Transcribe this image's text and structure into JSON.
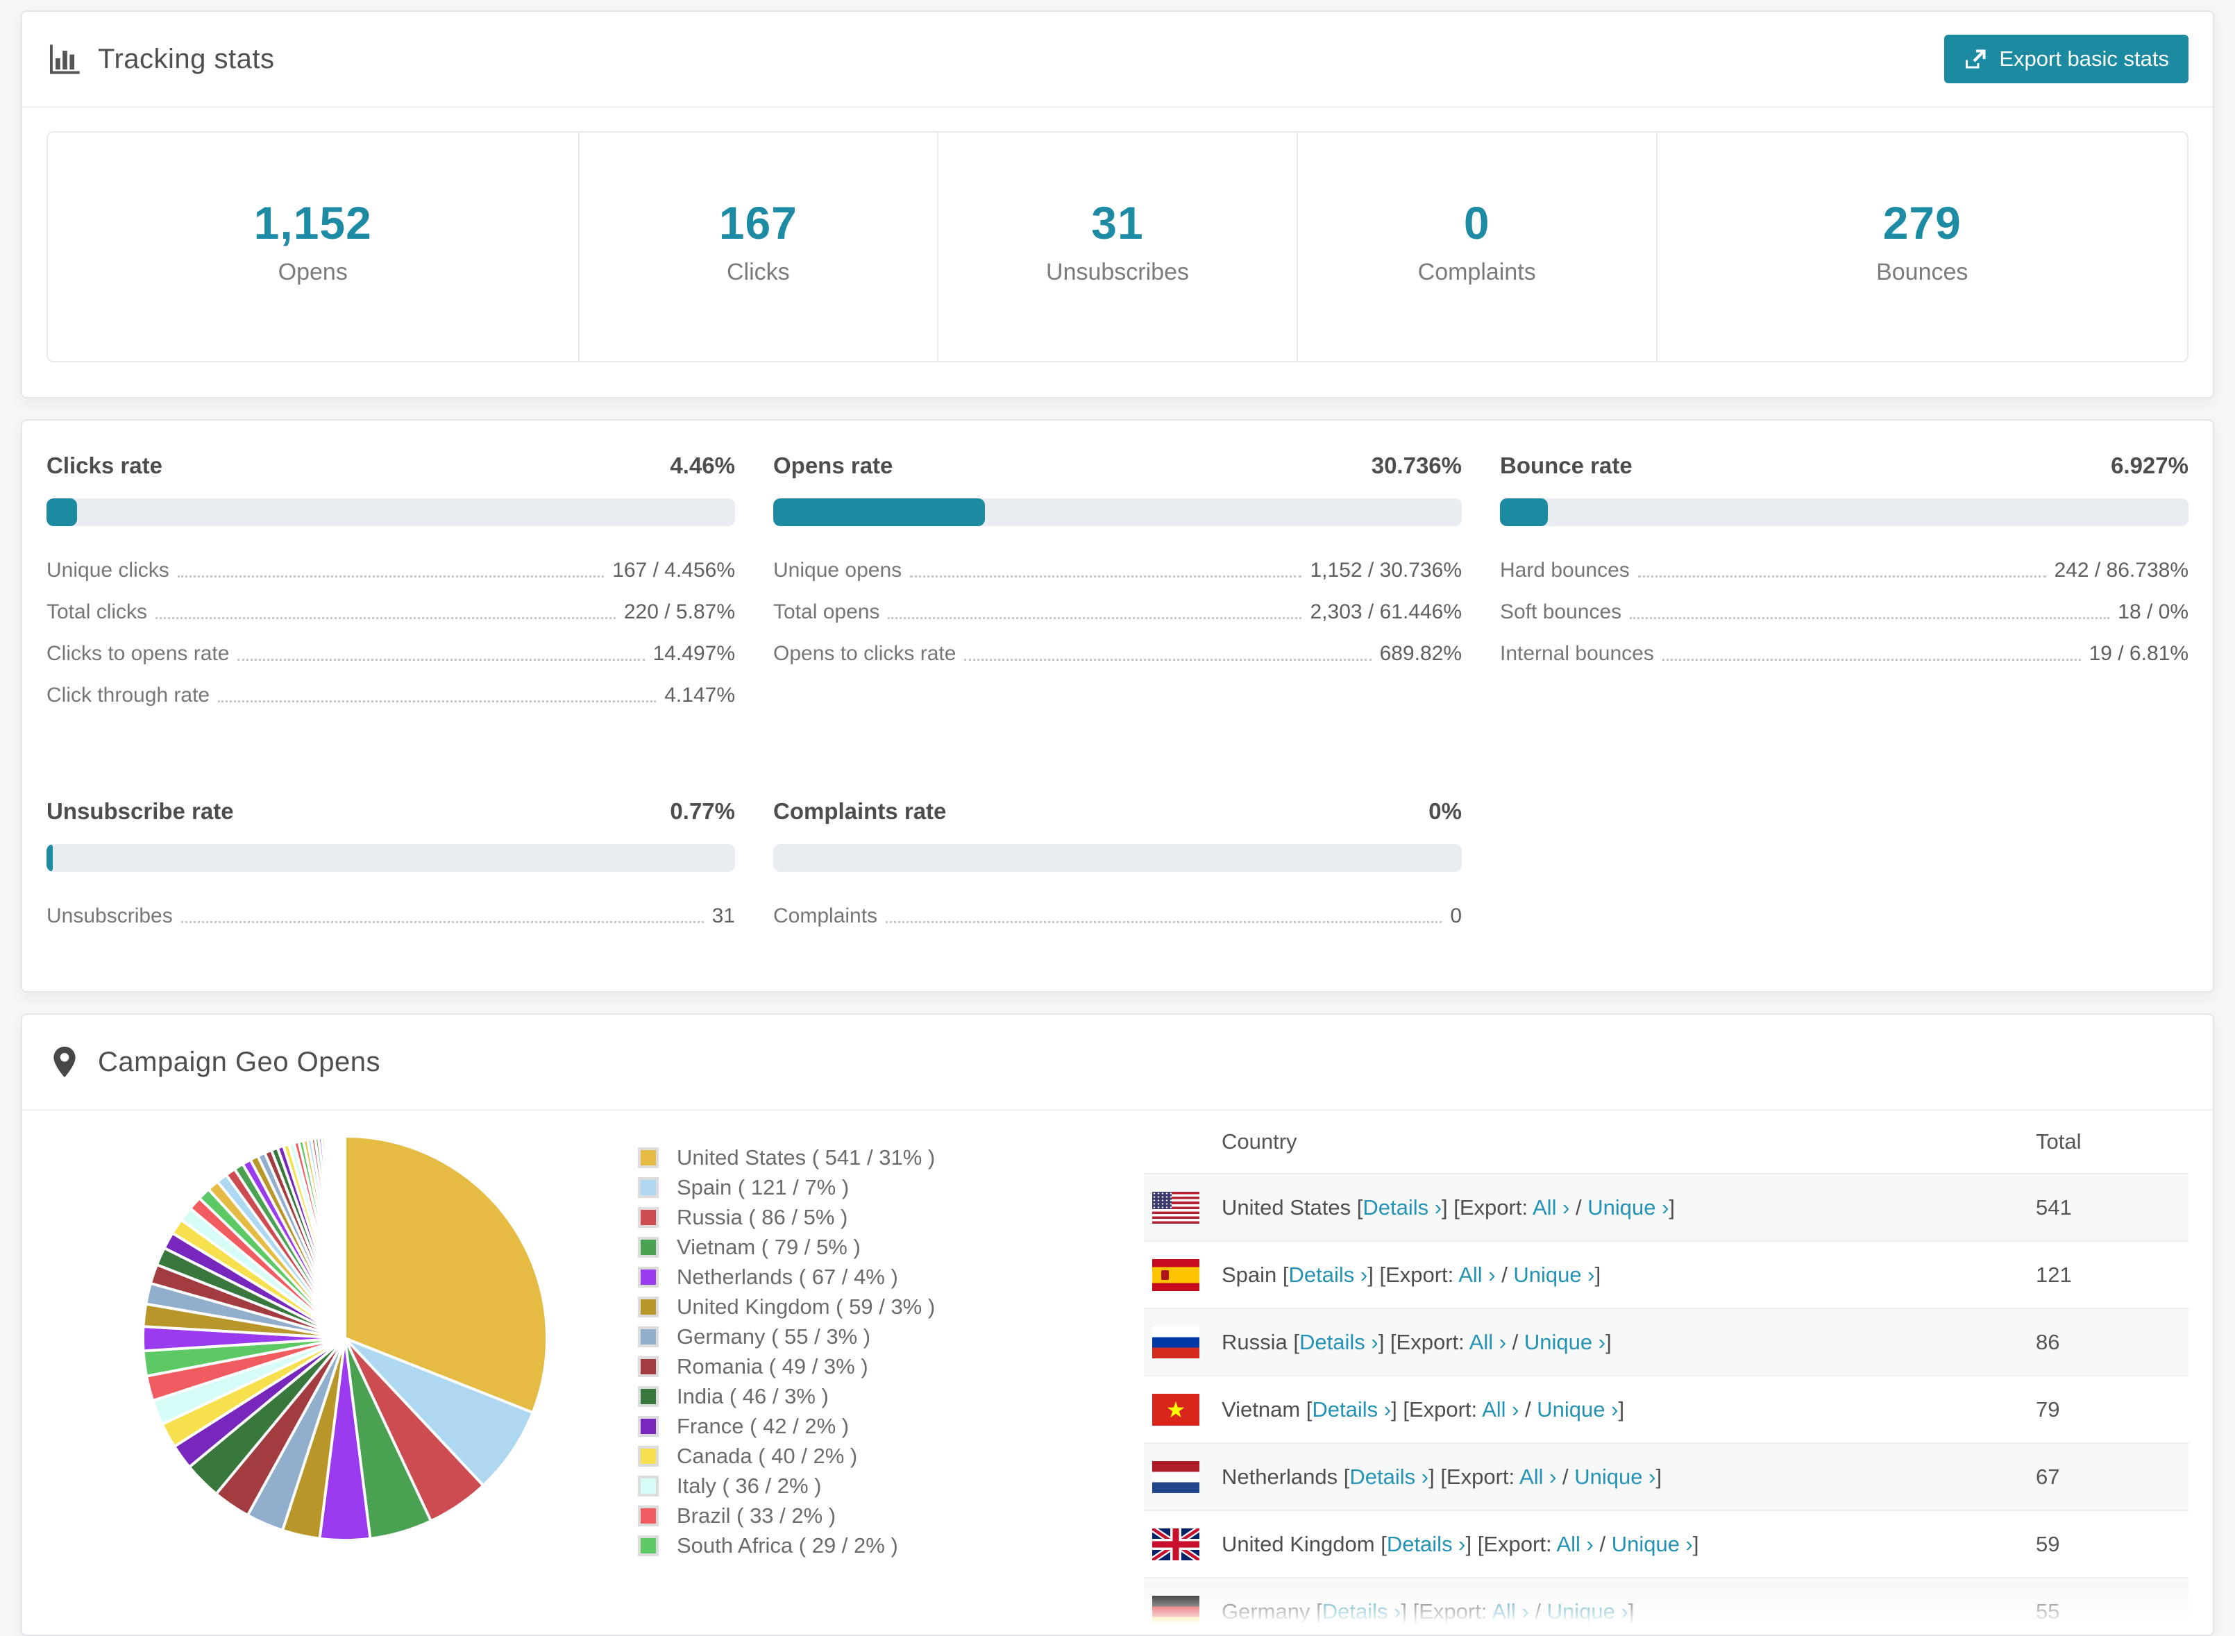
{
  "accent_color": "#1c8ba1",
  "link_color": "#2492b4",
  "tracking": {
    "title": "Tracking stats",
    "export_button": "Export basic stats",
    "stats": [
      {
        "value": "1,152",
        "label": "Opens"
      },
      {
        "value": "167",
        "label": "Clicks"
      },
      {
        "value": "31",
        "label": "Unsubscribes"
      },
      {
        "value": "0",
        "label": "Complaints"
      },
      {
        "value": "279",
        "label": "Bounces"
      }
    ]
  },
  "rates": [
    {
      "title": "Clicks rate",
      "value": "4.46%",
      "percent": 4.46,
      "rows": [
        {
          "label": "Unique clicks",
          "value": "167 / 4.456%"
        },
        {
          "label": "Total clicks",
          "value": "220 / 5.87%"
        },
        {
          "label": "Clicks to opens rate",
          "value": "14.497%"
        },
        {
          "label": "Click through rate",
          "value": "4.147%"
        }
      ]
    },
    {
      "title": "Opens rate",
      "value": "30.736%",
      "percent": 30.736,
      "rows": [
        {
          "label": "Unique opens",
          "value": "1,152 / 30.736%"
        },
        {
          "label": "Total opens",
          "value": "2,303 / 61.446%"
        },
        {
          "label": "Opens to clicks rate",
          "value": "689.82%"
        }
      ]
    },
    {
      "title": "Bounce rate",
      "value": "6.927%",
      "percent": 6.927,
      "rows": [
        {
          "label": "Hard bounces",
          "value": "242 / 86.738%"
        },
        {
          "label": "Soft bounces",
          "value": "18 / 0%"
        },
        {
          "label": "Internal bounces",
          "value": "19 / 6.81%"
        }
      ]
    },
    {
      "title": "Unsubscribe rate",
      "value": "0.77%",
      "percent": 0.77,
      "rows": [
        {
          "label": "Unsubscribes",
          "value": "31"
        }
      ]
    },
    {
      "title": "Complaints rate",
      "value": "0%",
      "percent": 0,
      "rows": [
        {
          "label": "Complaints",
          "value": "0"
        }
      ]
    }
  ],
  "geo": {
    "title": "Campaign Geo Opens",
    "table": {
      "columns": [
        "Country",
        "Total"
      ],
      "link_parts": {
        "open": "[",
        "close": "]",
        "details": "Details ›",
        "export": "Export:",
        "all": "All ›",
        "slash": "/",
        "unique": "Unique ›"
      },
      "rows": [
        {
          "country": "United States",
          "flag": "us",
          "total": "541"
        },
        {
          "country": "Spain",
          "flag": "es",
          "total": "121"
        },
        {
          "country": "Russia",
          "flag": "ru",
          "total": "86"
        },
        {
          "country": "Vietnam",
          "flag": "vn",
          "total": "79"
        },
        {
          "country": "Netherlands",
          "flag": "nl",
          "total": "67"
        },
        {
          "country": "United Kingdom",
          "flag": "gb",
          "total": "59"
        },
        {
          "country": "Germany",
          "flag": "de",
          "total": "55",
          "partial": true
        }
      ]
    }
  },
  "chart_data": {
    "type": "pie",
    "title": "Campaign Geo Opens",
    "labels": [
      "United States",
      "Spain",
      "Russia",
      "Vietnam",
      "Netherlands",
      "United Kingdom",
      "Germany",
      "Romania",
      "India",
      "France",
      "Canada",
      "Italy",
      "Brazil",
      "South Africa"
    ],
    "values": [
      541,
      121,
      86,
      79,
      67,
      59,
      55,
      49,
      46,
      42,
      40,
      36,
      33,
      29
    ],
    "percents": [
      31,
      7,
      5,
      5,
      4,
      3,
      3,
      3,
      3,
      2,
      2,
      2,
      2,
      2
    ],
    "others_percent": 26,
    "colors": [
      "#e5bb44",
      "#aed7f2",
      "#cc4c52",
      "#4ba152",
      "#9a3bf0",
      "#b8962a",
      "#92aecd",
      "#a23c40",
      "#39783c",
      "#7727bb",
      "#f7e04e",
      "#d7fcf8",
      "#f05c60",
      "#5dc964"
    ],
    "legend_position": "right",
    "start_angle_deg": 0,
    "tail": {
      "count": 40,
      "decay": 0.93,
      "start_color_index": 4
    }
  }
}
